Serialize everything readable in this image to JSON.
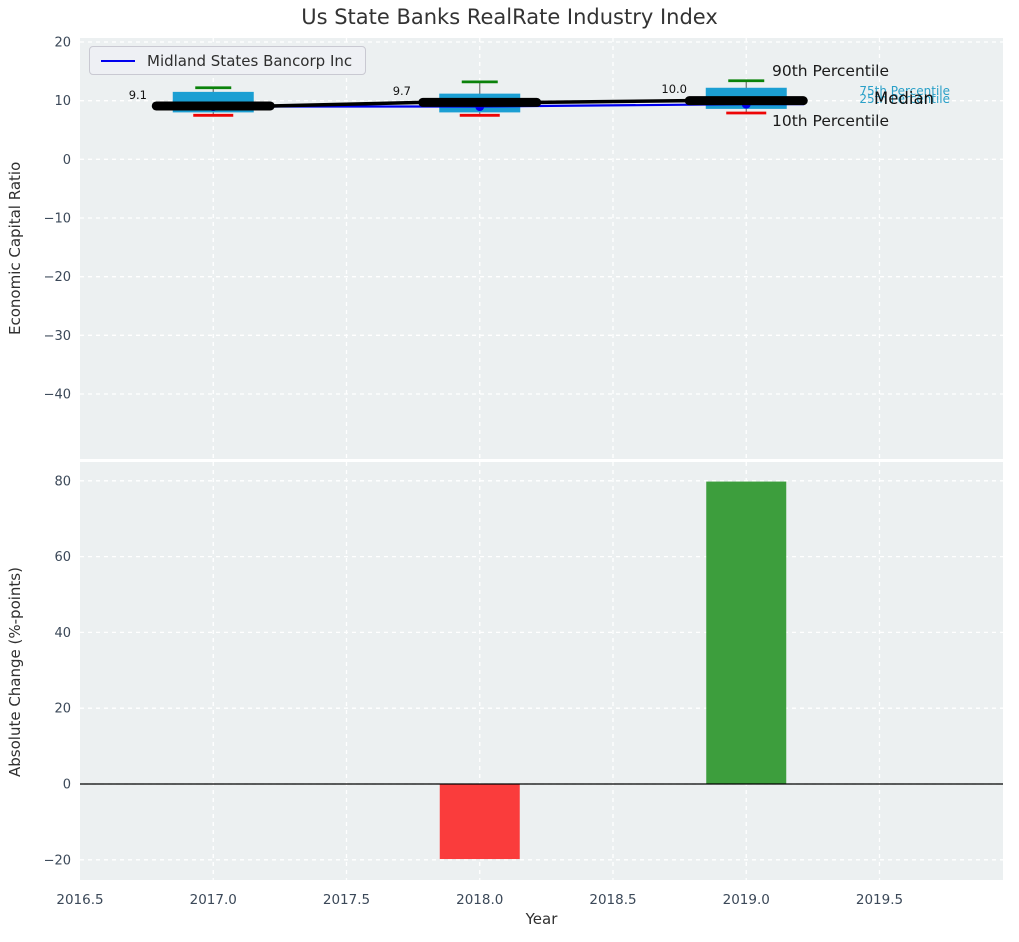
{
  "colors": {
    "plot_bg": "#ecf0f1",
    "grid": "#ffffff",
    "tick_text": "#3b4858",
    "box_fill": "#1b9fd3",
    "whisker": "#6e6e6e",
    "cap_top": "#0a820a",
    "cap_bottom": "#ee0505",
    "median_line": "#000000",
    "company_line": "#0000ee",
    "bar_negative": "#fa3c3c",
    "bar_positive": "#3d9e3d",
    "percentile_text": "#2aa0c8",
    "zero_line": "#000000"
  },
  "chart_data": [
    {
      "type": "boxplot+line",
      "title": "Us State Banks RealRate Industry Index",
      "ylabel": "Economic Capital Ratio",
      "ylim": [
        -51,
        20.7
      ],
      "xlim": [
        2016.5,
        2019.96
      ],
      "yticks": [
        20,
        10,
        0,
        -10,
        -20,
        -30,
        -40
      ],
      "grid": true,
      "years": [
        2017,
        2018,
        2019
      ],
      "legend": {
        "label": "Midland States Bancorp Inc",
        "position": "upper left"
      },
      "company": {
        "name": "Midland States Bancorp Inc",
        "values": [
          9.0,
          9.0,
          9.4
        ]
      },
      "median": {
        "values": [
          9.1,
          9.7,
          10.0
        ]
      },
      "annotations": [
        "9.1",
        "9.7",
        "10.0"
      ],
      "percentiles": {
        "p90": [
          12.2,
          13.2,
          13.4
        ],
        "p75": [
          11.5,
          11.2,
          12.2
        ],
        "p25": [
          8.0,
          8.0,
          8.6
        ],
        "p10": [
          7.5,
          7.5,
          7.9
        ]
      },
      "percentile_labels": {
        "p90": "90th Percentile",
        "p75": "75th Percentile",
        "median": "Median",
        "p25": "25th Percentile",
        "p10": "10th Percentile"
      }
    },
    {
      "type": "bar",
      "ylabel": "Absolute Change (%-points)",
      "xlabel": "Year",
      "ylim": [
        -25.5,
        85
      ],
      "yticks": [
        80,
        60,
        40,
        20,
        0,
        -20
      ],
      "xticks": [
        2016.5,
        2017.0,
        2017.5,
        2018.0,
        2018.5,
        2019.0,
        2019.5
      ],
      "grid": true,
      "zero_line": 0,
      "bars": [
        {
          "x": 2018,
          "value": -19.8
        },
        {
          "x": 2019,
          "value": 79.8
        }
      ]
    }
  ]
}
